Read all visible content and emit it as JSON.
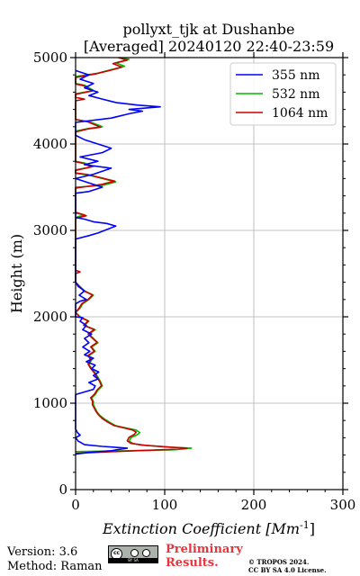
{
  "chart_data": {
    "type": "line",
    "title_line1": "pollyxt_tjk at Dushanbe",
    "title_line2": "[Averaged] 20240120 22:40-23:59",
    "xlabel": "Extinction Coefficient [Mm",
    "xlabel_sup": "-1",
    "xlabel_end": "]",
    "ylabel": "Height (m)",
    "xlim": [
      0,
      300
    ],
    "ylim": [
      0,
      5000
    ],
    "xticks": [
      0,
      100,
      200,
      300
    ],
    "yticks": [
      0,
      1000,
      2000,
      3000,
      4000,
      5000
    ],
    "grid": true,
    "legend_position": "top-right",
    "series": [
      {
        "name": "355 nm",
        "color": "#0000ff",
        "points": [
          [
            0,
            410
          ],
          [
            15,
            430
          ],
          [
            40,
            450
          ],
          [
            58,
            480
          ],
          [
            30,
            500
          ],
          [
            10,
            520
          ],
          [
            3,
            560
          ],
          [
            0,
            600
          ],
          [
            5,
            630
          ],
          [
            2,
            660
          ],
          [
            0,
            700
          ],
          [
            0,
            1100
          ],
          [
            10,
            1130
          ],
          [
            20,
            1160
          ],
          [
            22,
            1200
          ],
          [
            15,
            1240
          ],
          [
            25,
            1280
          ],
          [
            20,
            1320
          ],
          [
            26,
            1360
          ],
          [
            18,
            1400
          ],
          [
            22,
            1440
          ],
          [
            12,
            1480
          ],
          [
            20,
            1520
          ],
          [
            10,
            1560
          ],
          [
            16,
            1600
          ],
          [
            8,
            1650
          ],
          [
            15,
            1700
          ],
          [
            10,
            1750
          ],
          [
            18,
            1800
          ],
          [
            8,
            1850
          ],
          [
            12,
            1900
          ],
          [
            5,
            1950
          ],
          [
            8,
            1990
          ],
          [
            0,
            2000
          ],
          [
            0,
            2150
          ],
          [
            5,
            2180
          ],
          [
            12,
            2200
          ],
          [
            4,
            2250
          ],
          [
            10,
            2300
          ],
          [
            3,
            2350
          ],
          [
            0,
            2400
          ],
          [
            0,
            2900
          ],
          [
            15,
            2940
          ],
          [
            25,
            2970
          ],
          [
            45,
            3050
          ],
          [
            35,
            3080
          ],
          [
            20,
            3100
          ],
          [
            10,
            3130
          ],
          [
            0,
            3150
          ],
          [
            0,
            3430
          ],
          [
            15,
            3450
          ],
          [
            30,
            3500
          ],
          [
            15,
            3550
          ],
          [
            0,
            3600
          ],
          [
            0,
            3600
          ],
          [
            20,
            3650
          ],
          [
            40,
            3720
          ],
          [
            10,
            3760
          ],
          [
            25,
            3800
          ],
          [
            5,
            3850
          ],
          [
            30,
            3900
          ],
          [
            40,
            3950
          ],
          [
            25,
            4000
          ],
          [
            10,
            4050
          ],
          [
            0,
            4100
          ],
          [
            0,
            4250
          ],
          [
            40,
            4300
          ],
          [
            60,
            4350
          ],
          [
            75,
            4380
          ],
          [
            60,
            4400
          ],
          [
            95,
            4430
          ],
          [
            70,
            4450
          ],
          [
            45,
            4480
          ],
          [
            30,
            4520
          ],
          [
            15,
            4560
          ],
          [
            25,
            4600
          ],
          [
            10,
            4650
          ],
          [
            20,
            4700
          ],
          [
            5,
            4750
          ],
          [
            15,
            4800
          ],
          [
            0,
            4850
          ]
        ]
      },
      {
        "name": "532 nm",
        "color": "#00bb00",
        "points": [
          [
            0,
            440
          ],
          [
            60,
            450
          ],
          [
            110,
            460
          ],
          [
            130,
            480
          ],
          [
            110,
            490
          ],
          [
            80,
            510
          ],
          [
            65,
            530
          ],
          [
            60,
            560
          ],
          [
            62,
            600
          ],
          [
            70,
            640
          ],
          [
            72,
            660
          ],
          [
            68,
            690
          ],
          [
            58,
            710
          ],
          [
            45,
            740
          ],
          [
            38,
            780
          ],
          [
            32,
            820
          ],
          [
            27,
            860
          ],
          [
            24,
            900
          ],
          [
            22,
            940
          ],
          [
            20,
            980
          ],
          [
            20,
            1020
          ],
          [
            18,
            1060
          ],
          [
            22,
            1100
          ],
          [
            25,
            1150
          ],
          [
            30,
            1200
          ],
          [
            28,
            1250
          ],
          [
            25,
            1300
          ],
          [
            22,
            1350
          ],
          [
            18,
            1400
          ],
          [
            15,
            1450
          ],
          [
            18,
            1500
          ],
          [
            15,
            1550
          ],
          [
            22,
            1600
          ],
          [
            18,
            1650
          ],
          [
            25,
            1700
          ],
          [
            20,
            1750
          ],
          [
            15,
            1800
          ],
          [
            22,
            1850
          ],
          [
            10,
            1900
          ],
          [
            15,
            1950
          ],
          [
            5,
            2000
          ],
          [
            0,
            2050
          ],
          [
            5,
            2100
          ],
          [
            8,
            2150
          ],
          [
            15,
            2200
          ],
          [
            20,
            2250
          ],
          [
            10,
            2300
          ],
          [
            5,
            2350
          ],
          [
            0,
            2400
          ],
          [
            0,
            3150
          ],
          [
            10,
            3180
          ],
          [
            0,
            3200
          ],
          [
            0,
            3500
          ],
          [
            30,
            3520
          ],
          [
            45,
            3560
          ],
          [
            30,
            3600
          ],
          [
            15,
            3640
          ],
          [
            0,
            3660
          ],
          [
            0,
            3700
          ],
          [
            20,
            3740
          ],
          [
            10,
            3780
          ],
          [
            0,
            3800
          ],
          [
            0,
            4150
          ],
          [
            15,
            4180
          ],
          [
            30,
            4200
          ],
          [
            15,
            4260
          ],
          [
            0,
            4280
          ],
          [
            0,
            4580
          ],
          [
            20,
            4620
          ],
          [
            10,
            4680
          ],
          [
            0,
            4700
          ],
          [
            0,
            4780
          ],
          [
            25,
            4820
          ],
          [
            40,
            4860
          ],
          [
            55,
            4900
          ],
          [
            45,
            4940
          ],
          [
            60,
            4980
          ],
          [
            50,
            5000
          ]
        ]
      },
      {
        "name": "1064 nm",
        "color": "#cc0000",
        "points": [
          [
            0,
            420
          ],
          [
            55,
            445
          ],
          [
            105,
            465
          ],
          [
            125,
            480
          ],
          [
            105,
            492
          ],
          [
            75,
            515
          ],
          [
            62,
            535
          ],
          [
            58,
            565
          ],
          [
            60,
            605
          ],
          [
            66,
            640
          ],
          [
            68,
            665
          ],
          [
            64,
            690
          ],
          [
            55,
            712
          ],
          [
            43,
            742
          ],
          [
            36,
            782
          ],
          [
            30,
            822
          ],
          [
            26,
            862
          ],
          [
            23,
            902
          ],
          [
            21,
            942
          ],
          [
            19,
            982
          ],
          [
            19,
            1022
          ],
          [
            17,
            1062
          ],
          [
            21,
            1102
          ],
          [
            24,
            1152
          ],
          [
            29,
            1202
          ],
          [
            27,
            1252
          ],
          [
            24,
            1302
          ],
          [
            21,
            1352
          ],
          [
            17,
            1402
          ],
          [
            14,
            1452
          ],
          [
            17,
            1502
          ],
          [
            14,
            1552
          ],
          [
            21,
            1602
          ],
          [
            17,
            1652
          ],
          [
            24,
            1702
          ],
          [
            19,
            1752
          ],
          [
            14,
            1802
          ],
          [
            21,
            1852
          ],
          [
            9,
            1902
          ],
          [
            14,
            1952
          ],
          [
            4,
            2002
          ],
          [
            0,
            2052
          ],
          [
            4,
            2102
          ],
          [
            7,
            2152
          ],
          [
            14,
            2202
          ],
          [
            19,
            2252
          ],
          [
            9,
            2302
          ],
          [
            4,
            2352
          ],
          [
            0,
            2402
          ],
          [
            0,
            2500
          ],
          [
            5,
            2520
          ],
          [
            0,
            2540
          ],
          [
            0,
            3140
          ],
          [
            12,
            3170
          ],
          [
            0,
            3210
          ],
          [
            0,
            3490
          ],
          [
            28,
            3530
          ],
          [
            44,
            3570
          ],
          [
            28,
            3610
          ],
          [
            14,
            3645
          ],
          [
            0,
            3665
          ],
          [
            0,
            3695
          ],
          [
            18,
            3735
          ],
          [
            9,
            3775
          ],
          [
            0,
            3795
          ],
          [
            0,
            4140
          ],
          [
            14,
            4175
          ],
          [
            28,
            4195
          ],
          [
            14,
            4255
          ],
          [
            0,
            4285
          ],
          [
            0,
            4500
          ],
          [
            10,
            4520
          ],
          [
            0,
            4540
          ],
          [
            0,
            4575
          ],
          [
            19,
            4615
          ],
          [
            9,
            4675
          ],
          [
            0,
            4695
          ],
          [
            0,
            4770
          ],
          [
            22,
            4810
          ],
          [
            38,
            4850
          ],
          [
            52,
            4890
          ],
          [
            42,
            4930
          ],
          [
            58,
            4970
          ],
          [
            48,
            5000
          ]
        ]
      }
    ]
  },
  "footer": {
    "version": "Version: 3.6",
    "method": "Method: Raman",
    "prelim_line1": "Preliminary",
    "prelim_line2": "Results.",
    "copyright_line1": "© TROPOS 2024.",
    "copyright_line2": "CC BY SA 4.0 License."
  },
  "badge": {
    "circle_text": "cc",
    "strip_text": "BY SA"
  }
}
